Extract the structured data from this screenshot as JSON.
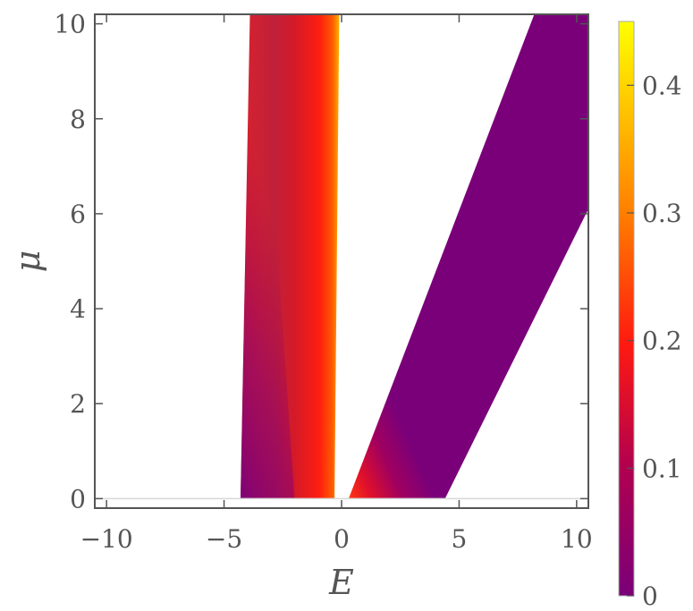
{
  "chart_data": {
    "type": "heatmap",
    "title": "",
    "xlabel": "E",
    "ylabel": "μ",
    "xlim": [
      -10.5,
      10.5
    ],
    "ylim": [
      -0.2,
      10.2
    ],
    "x_ticks": [
      "−10",
      "−5",
      "0",
      "5",
      "10"
    ],
    "x_tick_values": [
      -10,
      -5,
      0,
      5,
      10
    ],
    "y_ticks": [
      "0",
      "2",
      "4",
      "6",
      "8",
      "10"
    ],
    "y_tick_values": [
      0,
      2,
      4,
      6,
      8,
      10
    ],
    "colorbar": {
      "ticks": [
        "0",
        "0.1",
        "0.2",
        "0.3",
        "0.4"
      ],
      "tick_values": [
        0,
        0.1,
        0.2,
        0.3,
        0.4
      ],
      "range": [
        0,
        0.45
      ],
      "colors": [
        "#7a0079",
        "#d8182a",
        "#ff2000",
        "#ff8a00",
        "#ffff00"
      ]
    },
    "regions": [
      {
        "name": "left band",
        "polygon_E_mu": [
          [
            -4.3,
            0
          ],
          [
            -0.3,
            0
          ],
          [
            -0.1,
            10.2
          ],
          [
            -3.9,
            10.2
          ]
        ],
        "values": "0–0.3, peak near E≈0"
      },
      {
        "name": "right band",
        "polygon_E_mu": [
          [
            0.3,
            0
          ],
          [
            4.4,
            0
          ],
          [
            10.5,
            6.1
          ],
          [
            10.5,
            10.2
          ],
          [
            8.2,
            10.2
          ]
        ],
        "values": "≈0 mostly, up to ~0.2 near E≈0.5"
      }
    ],
    "grid": false
  }
}
